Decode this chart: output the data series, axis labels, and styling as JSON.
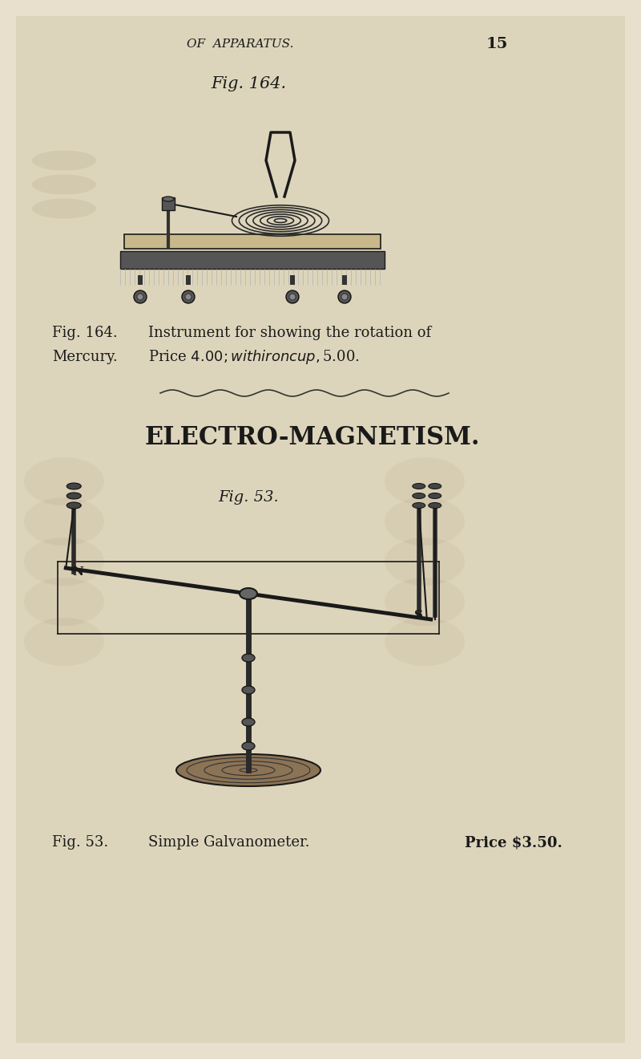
{
  "bg_color": "#e8e0cc",
  "page_color": "#ddd5bb",
  "header_text": "OF  APPARATUS.",
  "page_number": "15",
  "fig164_title": "Fig. 164.",
  "fig164_caption_left": "Fig. 164.",
  "fig164_caption_middle": "Instrument for showing the rotation of",
  "fig164_caption_left2": "Mercury.",
  "fig164_caption_middle2": "Price $4.00 ;  with iron cup, $5.00.",
  "section_title": "ELECTRO-MAGNETISM.",
  "fig53_title": "Fig. 53.",
  "fig53_caption_left": "Fig. 53.",
  "fig53_caption_middle": "Simple Galvanometer.",
  "fig53_caption_right": "Price $3.50.",
  "text_color": "#1a1a1a",
  "line_color": "#1a1a1a"
}
